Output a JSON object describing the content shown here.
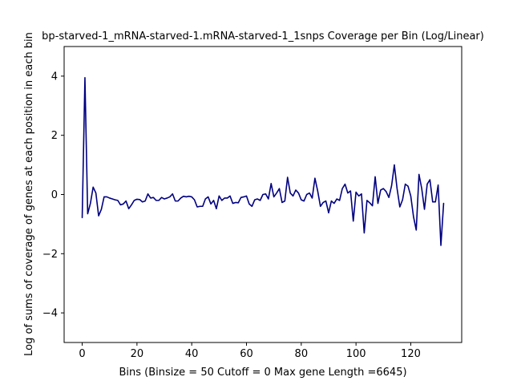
{
  "chart_data": {
    "type": "line",
    "title": "bp-starved-1_mRNA-starved-1.mRNA-starved-1_1snps Coverage per Bin (Log/Linear)",
    "xlabel": "Bins  (Binsize = 50 Cutoff = 0 Max gene Length =6645)",
    "ylabel": "Log of sums of coverage of genes at each position in each bin",
    "xlim": [
      -6.6,
      138.6
    ],
    "ylim": [
      -5,
      5
    ],
    "xticks": [
      0,
      20,
      40,
      60,
      80,
      100,
      120
    ],
    "yticks": [
      -4,
      -2,
      0,
      2,
      4
    ],
    "xtick_labels": [
      "0",
      "20",
      "40",
      "60",
      "80",
      "100",
      "120"
    ],
    "ytick_labels": [
      "−4",
      "−2",
      "0",
      "2",
      "4"
    ],
    "grid": false,
    "series": [
      {
        "color": "#000080",
        "x": [
          0,
          1,
          2,
          3,
          4,
          5,
          6,
          7,
          8,
          9,
          10,
          11,
          12,
          13,
          14,
          15,
          16,
          17,
          18,
          19,
          20,
          21,
          22,
          23,
          24,
          25,
          26,
          27,
          28,
          29,
          30,
          31,
          32,
          33,
          34,
          35,
          36,
          37,
          38,
          39,
          40,
          41,
          42,
          43,
          44,
          45,
          46,
          47,
          48,
          49,
          50,
          51,
          52,
          53,
          54,
          55,
          56,
          57,
          58,
          59,
          60,
          61,
          62,
          63,
          64,
          65,
          66,
          67,
          68,
          69,
          70,
          71,
          72,
          73,
          74,
          75,
          76,
          77,
          78,
          79,
          80,
          81,
          82,
          83,
          84,
          85,
          86,
          87,
          88,
          89,
          90,
          91,
          92,
          93,
          94,
          95,
          96,
          97,
          98,
          99,
          100,
          101,
          102,
          103,
          104,
          105,
          106,
          107,
          108,
          109,
          110,
          111,
          112,
          113,
          114,
          115,
          116,
          117,
          118,
          119,
          120,
          121,
          122,
          123,
          124,
          125,
          126,
          127,
          128,
          129,
          130,
          131,
          132
        ],
        "y": [
          -0.78,
          3.95,
          -0.65,
          -0.3,
          0.25,
          0.05,
          -0.72,
          -0.5,
          -0.08,
          -0.08,
          -0.12,
          -0.15,
          -0.18,
          -0.2,
          -0.35,
          -0.32,
          -0.22,
          -0.48,
          -0.35,
          -0.2,
          -0.16,
          -0.17,
          -0.25,
          -0.22,
          0.02,
          -0.12,
          -0.1,
          -0.2,
          -0.2,
          -0.1,
          -0.15,
          -0.12,
          -0.08,
          0.02,
          -0.22,
          -0.22,
          -0.12,
          -0.06,
          -0.08,
          -0.06,
          -0.08,
          -0.18,
          -0.42,
          -0.4,
          -0.4,
          -0.15,
          -0.08,
          -0.32,
          -0.2,
          -0.48,
          -0.05,
          -0.2,
          -0.12,
          -0.12,
          -0.05,
          -0.3,
          -0.27,
          -0.28,
          -0.1,
          -0.08,
          -0.05,
          -0.32,
          -0.4,
          -0.18,
          -0.15,
          -0.2,
          0.0,
          0.02,
          -0.15,
          0.37,
          -0.08,
          0.05,
          0.2,
          -0.27,
          -0.22,
          0.58,
          0.05,
          -0.05,
          0.15,
          0.05,
          -0.18,
          -0.22,
          0.0,
          0.05,
          -0.12,
          0.55,
          0.12,
          -0.4,
          -0.27,
          -0.22,
          -0.62,
          -0.22,
          -0.3,
          -0.15,
          -0.2,
          0.2,
          0.35,
          0.05,
          0.12,
          -0.9,
          0.08,
          -0.05,
          0.02,
          -1.3,
          -0.2,
          -0.28,
          -0.38,
          0.6,
          -0.3,
          0.15,
          0.2,
          0.1,
          -0.1,
          0.3,
          1.0,
          0.2,
          -0.42,
          -0.18,
          0.35,
          0.28,
          -0.05,
          -0.75,
          -1.2,
          0.68,
          0.2,
          -0.5,
          0.35,
          0.5,
          -0.25,
          -0.25,
          0.32,
          -1.72,
          -0.3
        ]
      }
    ]
  }
}
